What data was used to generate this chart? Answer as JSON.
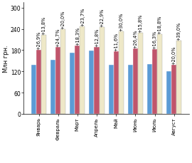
{
  "months": [
    "Январь",
    "Февраль",
    "Март",
    "Апрель",
    "Май",
    "Июнь",
    "Июль",
    "Август"
  ],
  "values_2003": [
    138,
    153,
    173,
    178,
    138,
    138,
    140,
    120
  ],
  "values_2004": [
    180,
    188,
    192,
    188,
    177,
    185,
    183,
    138
  ],
  "values_2005": [
    222,
    240,
    248,
    245,
    232,
    228,
    225,
    207
  ],
  "labels_2004": [
    "+26,9%",
    "+24,7%",
    "+18,3%",
    "+12,8%",
    "+11,6%",
    "+26,4%",
    "+16,3%",
    "+20,0%"
  ],
  "labels_2005": [
    "+13,8%",
    "+20,0%",
    "+23,7%",
    "+22,9%",
    "+30,0%",
    "+15,8%",
    "+18,8%",
    "+39,0%"
  ],
  "color_2003": "#5B9BD5",
  "color_2004": "#C0556B",
  "color_2005": "#EEE8C8",
  "ylabel": "Млн грн.",
  "ylim": [
    0,
    315
  ],
  "yticks": [
    0,
    60,
    120,
    180,
    240,
    300
  ],
  "bar_width": 0.26,
  "annotation_fontsize": 4.8
}
